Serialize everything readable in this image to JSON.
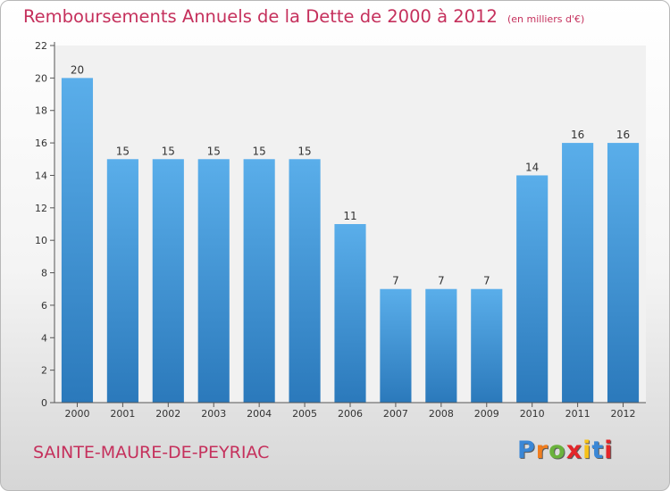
{
  "header": {
    "title": "Remboursements Annuels de la Dette de 2000 à 2012",
    "unit": "(en milliers d'€)"
  },
  "footer": {
    "commune": "SAINTE-MAURE-DE-PEYRIAC",
    "logo_text": "Proxiti",
    "logo_colors": [
      "#3a87d6",
      "#f07d1e",
      "#6ab23c",
      "#e3262a",
      "#f7c21a",
      "#3a87d6",
      "#e3262a"
    ]
  },
  "colors": {
    "title": "#c5305c",
    "bar_top": "#5aaeea",
    "bar_bottom": "#2b79bb"
  },
  "chart_data": {
    "type": "bar",
    "categories": [
      "2000",
      "2001",
      "2002",
      "2003",
      "2004",
      "2005",
      "2006",
      "2007",
      "2008",
      "2009",
      "2010",
      "2011",
      "2012"
    ],
    "values": [
      20,
      15,
      15,
      15,
      15,
      15,
      11,
      7,
      7,
      7,
      14,
      16,
      16
    ],
    "ylim": [
      0,
      22
    ],
    "yticks": [
      0,
      2,
      4,
      6,
      8,
      10,
      12,
      14,
      16,
      18,
      20,
      22
    ],
    "grid": false,
    "legend": "none"
  }
}
